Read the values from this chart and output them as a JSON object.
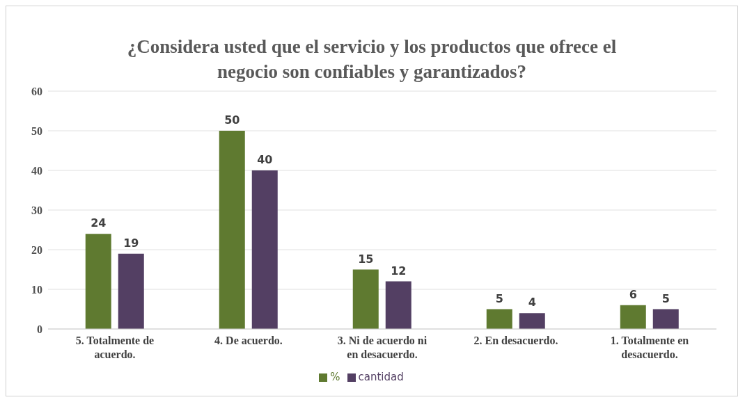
{
  "chart_data": {
    "type": "bar",
    "title": "¿Considera usted que el servicio y los productos que ofrece el negocio son confiables y garantizados?",
    "categories": [
      "5. Totalmente de acuerdo.",
      "4. De acuerdo.",
      "3. Ni de acuerdo ni en desacuerdo.",
      "2. En desacuerdo.",
      "1. Totalmente en desacuerdo."
    ],
    "series": [
      {
        "name": "%",
        "color": "#5f7a30",
        "values": [
          24,
          50,
          15,
          5,
          6
        ]
      },
      {
        "name": "cantidad",
        "color": "#533f63",
        "values": [
          19,
          40,
          12,
          4,
          5
        ]
      }
    ],
    "ylim": [
      0,
      60
    ],
    "yticks": [
      0,
      10,
      20,
      30,
      40,
      50,
      60
    ],
    "grid": "y",
    "legend": "bottom",
    "data_labels": true
  }
}
